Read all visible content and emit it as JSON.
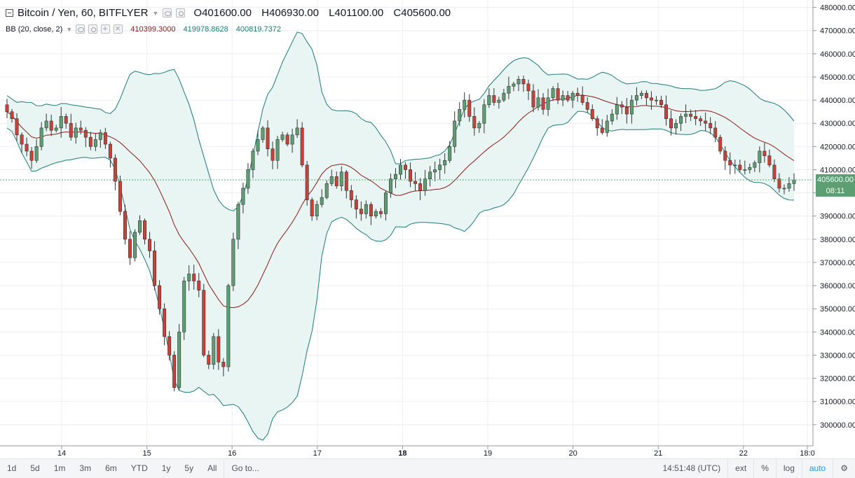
{
  "header": {
    "symbol_title": "Bitcoin / Yen, 60, BITFLYER",
    "open": "O401600.00",
    "high": "H406930.00",
    "low": "L401100.00",
    "close": "C405600.00"
  },
  "indicator": {
    "name": "BB (20, close, 2)",
    "basis": "410399.3000",
    "upper": "419978.8628",
    "lower": "400819.7372"
  },
  "last_price": {
    "label": "405600.00",
    "countdown": "08:11"
  },
  "bottom_toolbar": {
    "ranges": [
      "1d",
      "5d",
      "1m",
      "3m",
      "6m",
      "YTD",
      "1y",
      "5y",
      "All"
    ],
    "goto": "Go to...",
    "time": "14:51:48 (UTC)",
    "ext": "ext",
    "percent": "%",
    "log": "log",
    "auto": "auto"
  },
  "colors": {
    "up": "#5d9e73",
    "down": "#c9423a",
    "band": "#1f7a7a",
    "basis": "#8b1a1a",
    "band_fill": "#e9f5f3",
    "last_price_line": "#5d9e73"
  },
  "chart_data": {
    "type": "candlestick",
    "title": "Bitcoin / Yen, 60, BITFLYER",
    "y_axis_ticks": [
      300000,
      310000,
      320000,
      330000,
      340000,
      350000,
      360000,
      370000,
      380000,
      390000,
      400000,
      410000,
      420000,
      430000,
      440000,
      450000,
      460000,
      470000,
      480000
    ],
    "y_axis_labels": [
      "300000.00",
      "310000.00",
      "320000.00",
      "330000.00",
      "340000.00",
      "350000.00",
      "360000.00",
      "370000.00",
      "380000.00",
      "390000.00",
      "400000.00",
      "410000.00",
      "420000.00",
      "430000.00",
      "440000.00",
      "450000.00",
      "460000.00",
      "470000.00",
      "480000.00"
    ],
    "ylim": [
      293000,
      482000
    ],
    "x_axis_labels": [
      {
        "label": "14",
        "day": 14,
        "bold": false
      },
      {
        "label": "15",
        "day": 15,
        "bold": false
      },
      {
        "label": "16",
        "day": 16,
        "bold": false
      },
      {
        "label": "17",
        "day": 17,
        "bold": false
      },
      {
        "label": "18",
        "day": 18,
        "bold": true
      },
      {
        "label": "19",
        "day": 19,
        "bold": false
      },
      {
        "label": "20",
        "day": 20,
        "bold": false
      },
      {
        "label": "21",
        "day": 21,
        "bold": false
      },
      {
        "label": "22",
        "day": 22,
        "bold": false
      },
      {
        "label": "18:0",
        "day": 22.75,
        "bold": false
      }
    ],
    "last_close": 405600,
    "close_series": [
      435000,
      432000,
      425000,
      421000,
      418000,
      414000,
      420000,
      428000,
      431000,
      427000,
      428000,
      433000,
      430000,
      424000,
      428000,
      427000,
      424000,
      420000,
      423000,
      426000,
      421000,
      415000,
      405000,
      392000,
      380000,
      372000,
      383000,
      388000,
      380000,
      375000,
      360000,
      350000,
      338000,
      330000,
      316000,
      340000,
      362000,
      365000,
      362000,
      358000,
      330000,
      326000,
      338000,
      327000,
      325000,
      360000,
      380000,
      395000,
      402000,
      410000,
      418000,
      423000,
      428000,
      419000,
      414000,
      423000,
      425000,
      421000,
      425000,
      428000,
      412000,
      397000,
      390000,
      395000,
      398000,
      404000,
      407000,
      403000,
      409000,
      401000,
      397000,
      393000,
      391000,
      395000,
      390000,
      392000,
      391000,
      400000,
      406000,
      408000,
      412000,
      410000,
      405000,
      404000,
      401000,
      406000,
      409000,
      410000,
      412000,
      414000,
      420000,
      431000,
      436000,
      440000,
      433000,
      428000,
      430000,
      438000,
      442000,
      439000,
      440000,
      443000,
      446000,
      447000,
      449000,
      447000,
      444000,
      437000,
      441000,
      436000,
      441000,
      445000,
      440000,
      442000,
      440000,
      443000,
      442000,
      439000,
      436000,
      432000,
      428000,
      426000,
      431000,
      434000,
      438000,
      437000,
      434000,
      440000,
      442000,
      443000,
      441000,
      440000,
      440000,
      438000,
      432000,
      428000,
      430000,
      433000,
      434000,
      433000,
      432000,
      431000,
      430000,
      428000,
      424000,
      418000,
      414000,
      412000,
      412000,
      410000,
      410000,
      411000,
      413000,
      418000,
      416000,
      412000,
      406000,
      402000,
      402000,
      404000,
      405600
    ],
    "bb_upper_end": 419978.8628,
    "bb_basis_end": 410399.3,
    "bb_lower_end": 400819.7372
  }
}
